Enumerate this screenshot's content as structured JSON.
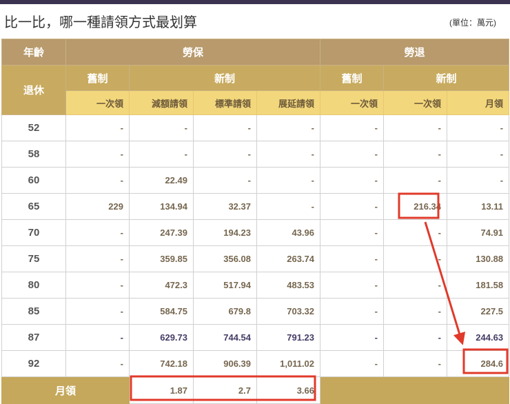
{
  "title": "比一比，哪一種請領方式最划算",
  "unit": "(單位：萬元)",
  "header": {
    "age_top": "年齡",
    "age_bottom": "退休",
    "labor_insurance": "勞保",
    "labor_pension": "勞退",
    "old_system": "舊制",
    "new_system": "新制",
    "sub": [
      "一次領",
      "減額請領",
      "標準請領",
      "展延請領",
      "一次領",
      "一次領",
      "月領"
    ]
  },
  "rows": [
    {
      "age": "52",
      "values": [
        "-",
        "-",
        "-",
        "-",
        "-",
        "-",
        "-"
      ]
    },
    {
      "age": "58",
      "values": [
        "-",
        "-",
        "-",
        "-",
        "-",
        "-",
        "-"
      ]
    },
    {
      "age": "60",
      "values": [
        "-",
        "22.49",
        "-",
        "-",
        "-",
        "-",
        "-"
      ]
    },
    {
      "age": "65",
      "values": [
        "229",
        "134.94",
        "32.37",
        "-",
        "-",
        "216.34",
        "13.11"
      ]
    },
    {
      "age": "70",
      "values": [
        "-",
        "247.39",
        "194.23",
        "43.96",
        "-",
        "-",
        "74.91"
      ]
    },
    {
      "age": "75",
      "values": [
        "-",
        "359.85",
        "356.08",
        "263.74",
        "-",
        "-",
        "130.88"
      ]
    },
    {
      "age": "80",
      "values": [
        "-",
        "472.3",
        "517.94",
        "483.53",
        "-",
        "-",
        "181.58"
      ]
    },
    {
      "age": "85",
      "values": [
        "-",
        "584.75",
        "679.8",
        "703.32",
        "-",
        "-",
        "227.5"
      ]
    },
    {
      "age": "87",
      "values": [
        "-",
        "629.73",
        "744.54",
        "791.23",
        "-",
        "-",
        "244.63"
      ],
      "highlight": true
    },
    {
      "age": "92",
      "values": [
        "-",
        "742.18",
        "906.39",
        "1,011.02",
        "-",
        "-",
        "284.6"
      ]
    }
  ],
  "footer": {
    "label": "月領",
    "values": [
      "1.87",
      "2.7",
      "3.66"
    ]
  },
  "colors": {
    "annotation": "#e03a2a",
    "header_dark": "#b89a6c",
    "header_mid": "#c8ab60",
    "header_light": "#f3d77c",
    "topbar": "#3b3250"
  }
}
